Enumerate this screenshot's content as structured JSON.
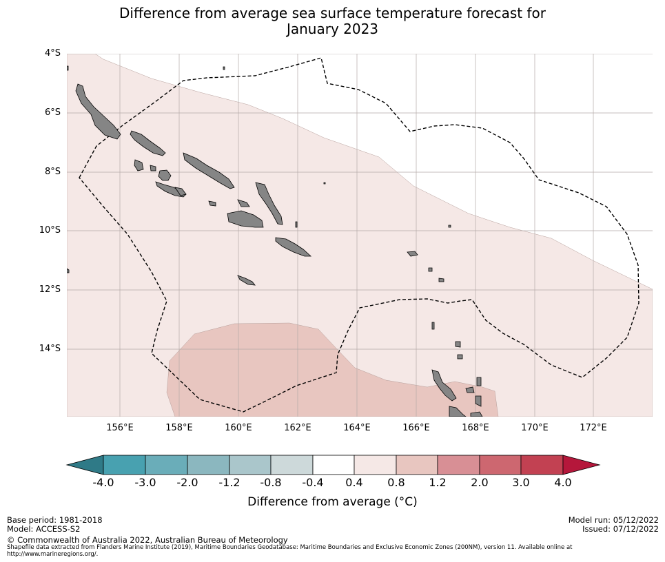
{
  "title": {
    "line1": "Difference from average sea surface temperature forecast for",
    "line2": "January 2023"
  },
  "map": {
    "lat_ticks": [
      "4°S",
      "6°S",
      "8°S",
      "10°S",
      "12°S",
      "14°S"
    ],
    "lon_ticks": [
      "156°E",
      "158°E",
      "160°E",
      "162°E",
      "164°E",
      "166°E",
      "168°E",
      "170°E",
      "172°E"
    ],
    "colors": {
      "anomaly_0_4_to_0_8": "#f5e8e6",
      "anomaly_0_8_to_1_2": "#e8c6c0",
      "land": "#858585",
      "eez_boundary": "#000000",
      "gridline": "#b3a9a7"
    },
    "features": [
      "sea-surface-temperature-anomaly",
      "land-masses",
      "eez-boundary"
    ]
  },
  "colorbar": {
    "tick_labels": [
      "-4.0",
      "-3.0",
      "-2.0",
      "-1.2",
      "-0.8",
      "-0.4",
      "0.4",
      "0.8",
      "1.2",
      "2.0",
      "3.0",
      "4.0"
    ],
    "colors": [
      "#2f7a87",
      "#48a1b0",
      "#6aadb9",
      "#8bb7bf",
      "#aac6cb",
      "#cdd9da",
      "#ffffff",
      "#f5e8e6",
      "#e8c6c0",
      "#d88f95",
      "#cd6770",
      "#c24152",
      "#b5173b"
    ],
    "label": "Difference from average ($^\\circ$C)",
    "label_display": "Difference from average (°C)"
  },
  "footer": {
    "base_period": "Base period: 1981-2018",
    "model": "Model: ACCESS-S2",
    "copyright": "© Commonwealth of Australia 2022, Australian Bureau of Meteorology",
    "shapefile_note": "Shapefile data extracted from Flanders Marine Institute (2019), Maritime Boundaries Geodatabase: Maritime Boundaries and Exclusive Economic Zones (200NM), version 11. Available online at http://www.marineregions.org/.",
    "model_run": "Model run: 05/12/2022",
    "issued": "Issued: 07/12/2022"
  }
}
